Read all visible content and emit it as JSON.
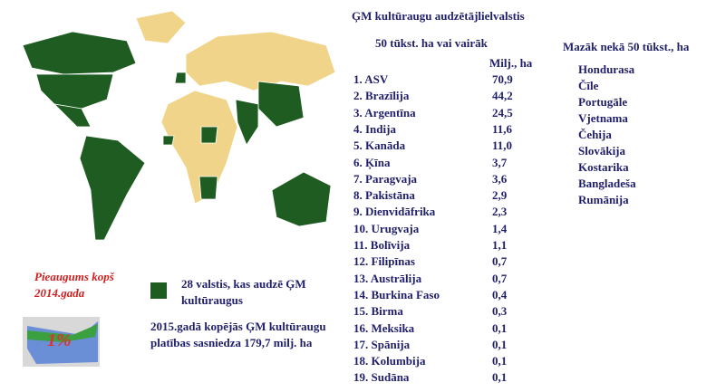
{
  "header": {
    "title": "ĢM kultūraugu audzētājlielvalstis",
    "subtitle": "50 tūkst. ha vai vairāk",
    "unit": "Milj., ha"
  },
  "table": {
    "rows": [
      [
        "1. ASV",
        "70,9"
      ],
      [
        "2. Brazīlija",
        "44,2"
      ],
      [
        "3. Argentīna",
        "24,5"
      ],
      [
        "4. Indija",
        "11,6"
      ],
      [
        "5. Kanāda",
        "11,0"
      ],
      [
        "6. Ķīna",
        "3,7"
      ],
      [
        "7. Paragvaja",
        "3,6"
      ],
      [
        "8. Pakistāna",
        "2,9"
      ],
      [
        "9. Dienvidāfrika",
        "2,3"
      ],
      [
        "10. Urugvaja",
        "1,4"
      ],
      [
        "11. Bolīvija",
        "1,1"
      ],
      [
        "12. Filipīnas",
        "0,7"
      ],
      [
        "13. Austrālija",
        "0,7"
      ],
      [
        "14. Burkina Faso",
        "0,4"
      ],
      [
        "15. Birma",
        "0,3"
      ],
      [
        "16. Meksika",
        "0,1"
      ],
      [
        "17. Spānija",
        "0,1"
      ],
      [
        "18. Kolumbija",
        "0,1"
      ],
      [
        "19. Sudāna",
        "0,1"
      ]
    ]
  },
  "small": {
    "title": "Mazāk nekā 50 tūkst., ha",
    "items": [
      "Hondurasa",
      "Čīle",
      "Portugāle",
      "Vjetnama",
      "Čehija",
      "Slovākija",
      "Kostarika",
      "Bangladeša",
      "Rumānija"
    ]
  },
  "growth": {
    "label": "Pieaugums kopš 2014.gada",
    "value": "1%"
  },
  "legend": {
    "label": "28 valstis, kas audzē ĢM kultūraugus"
  },
  "note": "2015.gadā kopējās ĢM kultūraugu platības sasniedza 179,7 milj. ha"
}
